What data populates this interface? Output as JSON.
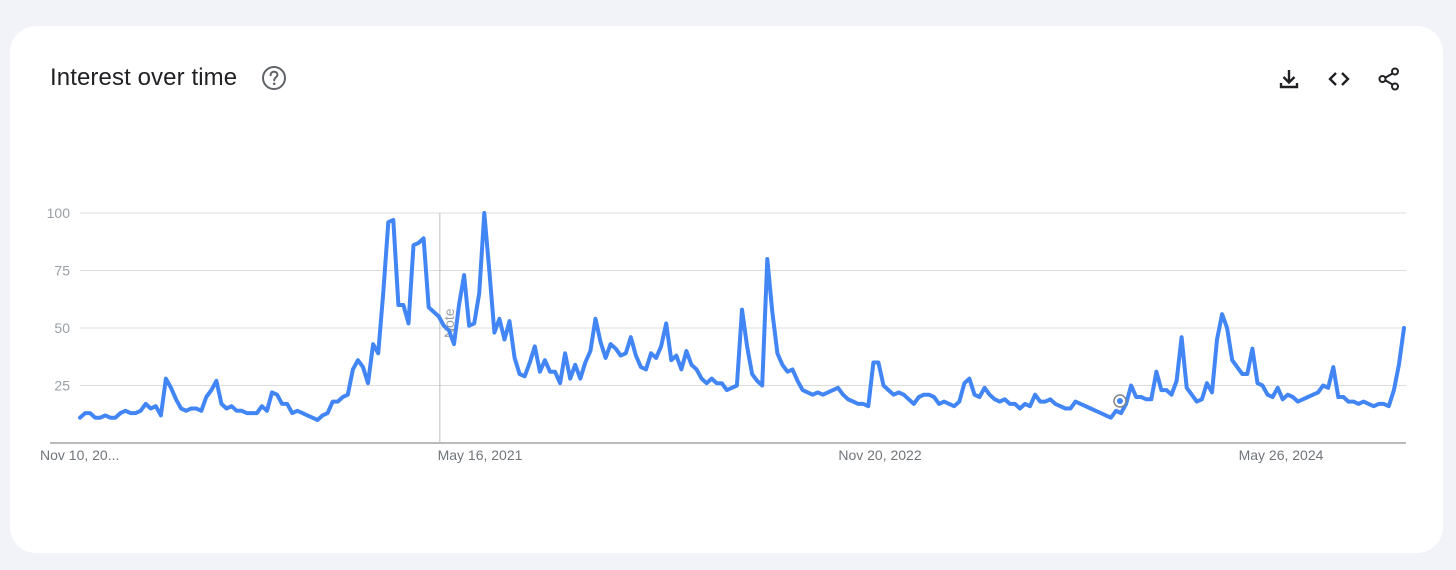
{
  "header": {
    "title": "Interest over time",
    "help_icon": "help-circle-icon",
    "actions": [
      {
        "icon": "download-icon"
      },
      {
        "icon": "embed-code-icon"
      },
      {
        "icon": "share-icon"
      }
    ]
  },
  "colors": {
    "line": "#4285f4",
    "grid": "#dadce0",
    "background": "#f1f3f8",
    "card": "#ffffff"
  },
  "chart_data": {
    "type": "line",
    "title": "",
    "xlabel": "",
    "ylabel": "",
    "ylim": [
      0,
      100
    ],
    "yticks": [
      25,
      50,
      75,
      100
    ],
    "xtick_labels": [
      "Nov 10, 20...",
      "May 16, 2021",
      "Nov 20, 2022",
      "May 26, 2024"
    ],
    "grid": true,
    "annotations": [
      {
        "text": "Note",
        "at_index": 72
      }
    ],
    "series": [
      {
        "values": [
          11,
          13,
          13,
          11,
          11,
          12,
          11,
          11,
          13,
          14,
          13,
          13,
          14,
          17,
          15,
          16,
          12,
          28,
          24,
          19,
          15,
          14,
          15,
          15,
          14,
          20,
          23,
          27,
          17,
          15,
          16,
          14,
          14,
          13,
          13,
          13,
          16,
          14,
          22,
          21,
          17,
          17,
          13,
          14,
          13,
          12,
          11,
          10,
          12,
          13,
          18,
          18,
          20,
          21,
          32,
          36,
          33,
          26,
          43,
          39,
          65,
          96,
          97,
          60,
          60,
          52,
          86,
          87,
          89,
          59,
          57,
          55,
          51,
          49,
          43,
          60,
          73,
          51,
          52,
          65,
          100,
          75,
          48,
          54,
          45,
          53,
          37,
          30,
          29,
          35,
          42,
          31,
          36,
          31,
          31,
          26,
          39,
          28,
          34,
          28,
          35,
          40,
          54,
          44,
          37,
          43,
          41,
          38,
          39,
          46,
          38,
          33,
          32,
          39,
          37,
          42,
          52,
          36,
          38,
          32,
          40,
          34,
          32,
          28,
          26,
          28,
          26,
          26,
          23,
          24,
          25,
          58,
          42,
          30,
          27,
          25,
          80,
          57,
          39,
          34,
          31,
          32,
          27,
          23,
          22,
          21,
          22,
          21,
          22,
          23,
          24,
          21,
          19,
          18,
          17,
          17,
          16,
          35,
          35,
          25,
          23,
          21,
          22,
          21,
          19,
          17,
          20,
          21,
          21,
          20,
          17,
          18,
          17,
          16,
          18,
          26,
          28,
          21,
          20,
          24,
          21,
          19,
          18,
          19,
          17,
          17,
          15,
          17,
          16,
          21,
          18,
          18,
          19,
          17,
          16,
          15,
          15,
          18,
          17,
          16,
          15,
          14,
          13,
          12,
          11,
          14,
          13,
          17,
          25,
          20,
          20,
          19,
          19,
          31,
          23,
          23,
          21,
          27,
          46,
          24,
          21,
          18,
          19,
          26,
          22,
          45,
          56,
          50,
          36,
          33,
          30,
          30,
          41,
          26,
          25,
          21,
          20,
          24,
          19,
          21,
          20,
          18,
          19,
          20,
          21,
          22,
          25,
          24,
          33,
          20,
          20,
          18,
          18,
          17,
          18,
          17,
          16,
          17,
          17,
          16,
          23,
          34,
          50
        ]
      }
    ]
  }
}
